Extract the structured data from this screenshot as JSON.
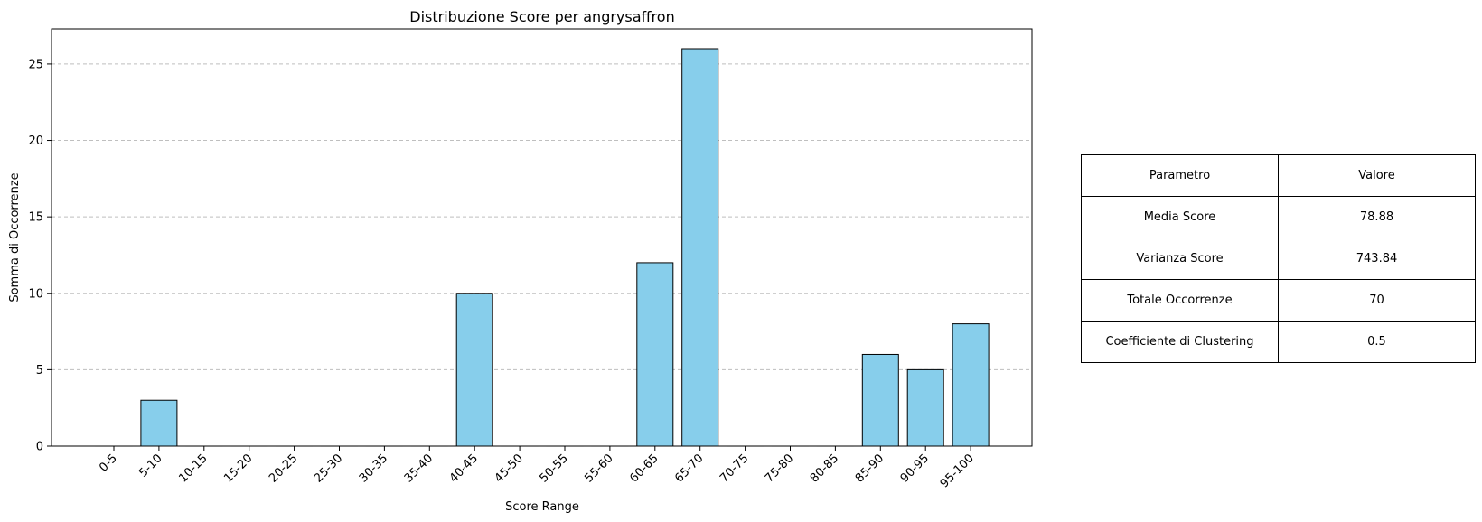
{
  "chart_data": {
    "type": "bar",
    "title": "Distribuzione Score per angrysaffron",
    "xlabel": "Score Range",
    "ylabel": "Somma di Occorrenze",
    "categories": [
      "0-5",
      "5-10",
      "10-15",
      "15-20",
      "20-25",
      "25-30",
      "30-35",
      "35-40",
      "40-45",
      "45-50",
      "50-55",
      "55-60",
      "60-65",
      "65-70",
      "70-75",
      "75-80",
      "80-85",
      "85-90",
      "90-95",
      "95-100"
    ],
    "values": [
      0,
      3,
      0,
      0,
      0,
      0,
      0,
      0,
      10,
      0,
      0,
      0,
      12,
      26,
      0,
      0,
      0,
      6,
      5,
      8
    ],
    "ylim": [
      0,
      27.3
    ],
    "yticks": [
      0,
      5,
      10,
      15,
      20,
      25
    ],
    "grid": "y-dashed",
    "bar_color": "#87ceeb",
    "edge_color": "#000000"
  },
  "table": {
    "header": [
      "Parametro",
      "Valore"
    ],
    "rows": [
      [
        "Media Score",
        "78.88"
      ],
      [
        "Varianza Score",
        "743.84"
      ],
      [
        "Totale Occorrenze",
        "70"
      ],
      [
        "Coefficiente di Clustering",
        "0.5"
      ]
    ]
  }
}
